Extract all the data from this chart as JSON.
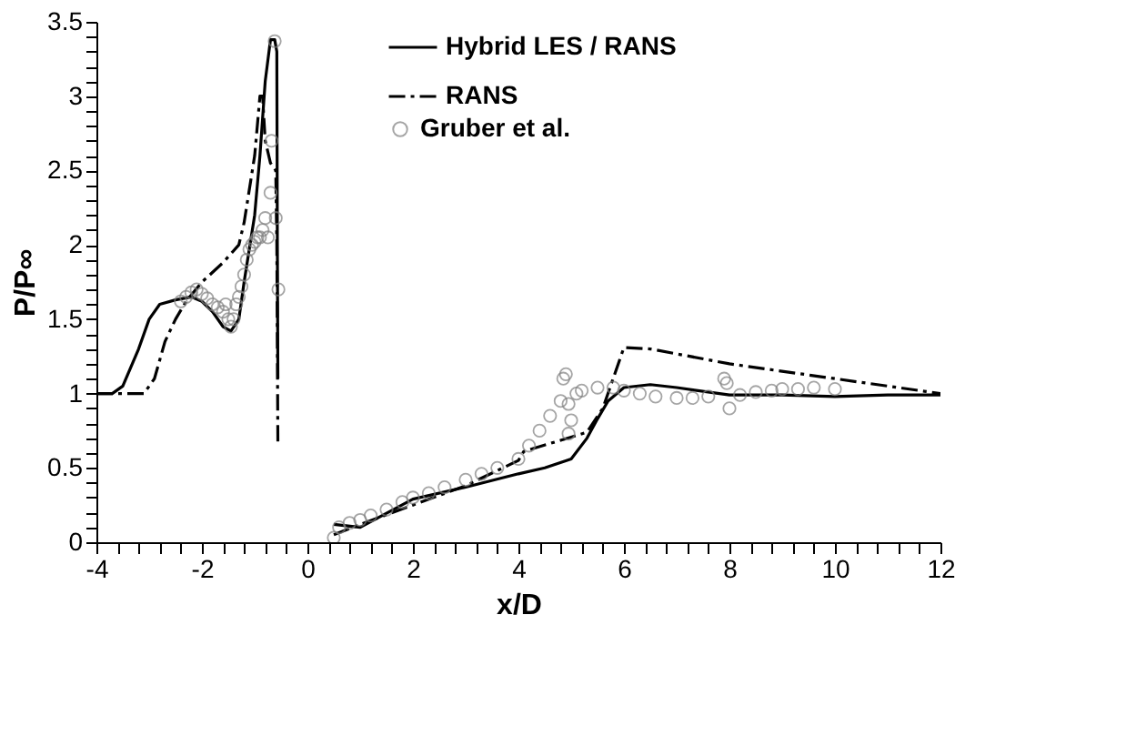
{
  "chart_data": {
    "type": "line",
    "xlabel": "x/D",
    "ylabel": "P/P∞",
    "xlim": [
      -4,
      12
    ],
    "ylim": [
      0,
      3.5
    ],
    "xticks": [
      -4,
      {
        "value": -3.6,
        "label": null
      },
      {
        "value": -3.2,
        "label": null
      },
      {
        "value": -2.8,
        "label": null
      },
      {
        "value": -2.4,
        "label": null
      },
      -2,
      {
        "value": -1.6,
        "label": null
      },
      {
        "value": -1.2,
        "label": null
      },
      {
        "value": -0.8,
        "label": null
      },
      {
        "value": -0.4,
        "label": null
      },
      0,
      {
        "value": 0.4,
        "label": null
      },
      {
        "value": 0.8,
        "label": null
      },
      {
        "value": 1.2,
        "label": null
      },
      {
        "value": 1.6,
        "label": null
      },
      2,
      {
        "value": 2.4,
        "label": null
      },
      {
        "value": 2.8,
        "label": null
      },
      {
        "value": 3.2,
        "label": null
      },
      {
        "value": 3.6,
        "label": null
      },
      4,
      {
        "value": 4.4,
        "label": null
      },
      {
        "value": 4.8,
        "label": null
      },
      {
        "value": 5.2,
        "label": null
      },
      {
        "value": 5.6,
        "label": null
      },
      6,
      {
        "value": 6.4,
        "label": null
      },
      {
        "value": 6.8,
        "label": null
      },
      {
        "value": 7.2,
        "label": null
      },
      {
        "value": 7.6,
        "label": null
      },
      8,
      {
        "value": 8.4,
        "label": null
      },
      {
        "value": 8.8,
        "label": null
      },
      {
        "value": 9.2,
        "label": null
      },
      {
        "value": 9.6,
        "label": null
      },
      10,
      {
        "value": 10.4,
        "label": null
      },
      {
        "value": 10.8,
        "label": null
      },
      {
        "value": 11.2,
        "label": null
      },
      {
        "value": 11.6,
        "label": null
      },
      12
    ],
    "yticks": [
      0,
      {
        "value": 0.1,
        "label": null
      },
      {
        "value": 0.2,
        "label": null
      },
      {
        "value": 0.3,
        "label": null
      },
      {
        "value": 0.4,
        "label": null
      },
      0.5,
      {
        "value": 0.6,
        "label": null
      },
      {
        "value": 0.7,
        "label": null
      },
      {
        "value": 0.8,
        "label": null
      },
      {
        "value": 0.9,
        "label": null
      },
      1,
      {
        "value": 1.1,
        "label": null
      },
      {
        "value": 1.2,
        "label": null
      },
      {
        "value": 1.3,
        "label": null
      },
      {
        "value": 1.4,
        "label": null
      },
      1.5,
      {
        "value": 1.6,
        "label": null
      },
      {
        "value": 1.7,
        "label": null
      },
      {
        "value": 1.8,
        "label": null
      },
      {
        "value": 1.9,
        "label": null
      },
      2,
      {
        "value": 2.1,
        "label": null
      },
      {
        "value": 2.2,
        "label": null
      },
      {
        "value": 2.3,
        "label": null
      },
      {
        "value": 2.4,
        "label": null
      },
      2.5,
      {
        "value": 2.6,
        "label": null
      },
      {
        "value": 2.7,
        "label": null
      },
      {
        "value": 2.8,
        "label": null
      },
      {
        "value": 2.9,
        "label": null
      },
      3,
      {
        "value": 3.1,
        "label": null
      },
      {
        "value": 3.2,
        "label": null
      },
      {
        "value": 3.3,
        "label": null
      },
      {
        "value": 3.4,
        "label": null
      },
      3.5
    ],
    "grid": false,
    "legend": "top right",
    "marker": "none",
    "series": [
      {
        "name": "Hybrid LES / RANS",
        "type": "line",
        "line_style": "solid",
        "color": "#000000",
        "x": [
          -4,
          -3.7,
          -3.5,
          -3.2,
          -3.0,
          -2.8,
          -2.5,
          -2.2,
          -2.0,
          -1.8,
          -1.6,
          -1.45,
          -1.3,
          -1.2,
          -1.0,
          -0.9,
          -0.8,
          -0.7,
          -0.62,
          -0.58,
          -0.57,
          -0.56,
          0,
          0.5,
          1,
          2,
          3,
          4,
          4.5,
          5,
          5.3,
          5.5,
          5.7,
          6,
          6.5,
          7,
          8,
          9,
          10,
          11,
          12
        ],
        "values": [
          1.0,
          1.0,
          1.05,
          1.3,
          1.5,
          1.6,
          1.63,
          1.65,
          1.62,
          1.55,
          1.45,
          1.42,
          1.5,
          1.75,
          2.2,
          2.6,
          3.1,
          3.38,
          3.38,
          3.3,
          2.0,
          1.1,
          null,
          0.12,
          0.1,
          0.29,
          0.37,
          0.46,
          0.5,
          0.56,
          0.7,
          0.83,
          0.95,
          1.04,
          1.06,
          1.04,
          0.99,
          0.99,
          0.98,
          0.99,
          0.99
        ]
      },
      {
        "name": "RANS",
        "type": "line",
        "line_style": "dashed",
        "color": "#000000",
        "x": [
          -4,
          -3.1,
          -2.9,
          -2.7,
          -2.5,
          -2.3,
          -2.0,
          -1.6,
          -1.3,
          -1.2,
          -1.0,
          -0.9,
          -0.85,
          -0.8,
          -0.7,
          -0.6,
          -0.58,
          -0.56,
          0,
          0.5,
          1,
          2,
          3,
          4,
          4.1,
          5.3,
          5.6,
          6,
          6.5,
          8,
          10,
          12
        ],
        "values": [
          1.0,
          1.0,
          1.1,
          1.35,
          1.5,
          1.62,
          1.75,
          1.88,
          2.0,
          2.15,
          2.6,
          3.0,
          3.0,
          2.7,
          2.55,
          2.5,
          2.0,
          0.67,
          null,
          0.05,
          0.12,
          0.25,
          0.38,
          0.55,
          0.61,
          0.74,
          0.9,
          1.31,
          1.3,
          1.2,
          1.1,
          1.0
        ]
      },
      {
        "name": "Gruber et al.",
        "type": "scatter",
        "marker": "circle",
        "color": "#808080",
        "x": [
          -2.4,
          -2.3,
          -2.2,
          -2.1,
          -2.0,
          -1.9,
          -1.8,
          -1.7,
          -1.6,
          -1.55,
          -1.5,
          -1.45,
          -1.4,
          -1.35,
          -1.3,
          -1.25,
          -1.2,
          -1.15,
          -1.1,
          -1.05,
          -1.0,
          -0.95,
          -0.9,
          -0.85,
          -0.8,
          -0.75,
          -0.7,
          -0.68,
          -0.62,
          -0.6,
          -0.55,
          0.5,
          0.6,
          0.8,
          1,
          1.2,
          1.5,
          1.8,
          2,
          2.3,
          2.6,
          3,
          3.3,
          3.6,
          4,
          4.2,
          4.4,
          4.6,
          4.8,
          4.85,
          4.9,
          4.95,
          4.95,
          5.0,
          5.1,
          5.2,
          5.5,
          5.8,
          6,
          6.3,
          6.6,
          7,
          7.3,
          7.6,
          7.9,
          7.95,
          8,
          8.2,
          8.5,
          8.8,
          9,
          9.3,
          9.6,
          10
        ],
        "values": [
          1.62,
          1.65,
          1.68,
          1.7,
          1.67,
          1.64,
          1.6,
          1.58,
          1.55,
          1.6,
          1.5,
          1.45,
          1.5,
          1.6,
          1.65,
          1.72,
          1.8,
          1.9,
          1.97,
          2.0,
          2.02,
          2.05,
          2.05,
          2.1,
          2.18,
          2.05,
          2.35,
          2.7,
          3.37,
          2.18,
          1.7,
          0.03,
          0.1,
          0.13,
          0.15,
          0.18,
          0.22,
          0.27,
          0.3,
          0.33,
          0.37,
          0.42,
          0.46,
          0.5,
          0.56,
          0.65,
          0.75,
          0.85,
          0.95,
          1.1,
          1.13,
          0.93,
          0.73,
          0.82,
          1.0,
          1.02,
          1.04,
          1.04,
          1.02,
          1.0,
          0.98,
          0.97,
          0.97,
          0.98,
          1.1,
          1.07,
          0.9,
          0.99,
          1.01,
          1.02,
          1.03,
          1.03,
          1.04,
          1.03
        ]
      }
    ]
  }
}
